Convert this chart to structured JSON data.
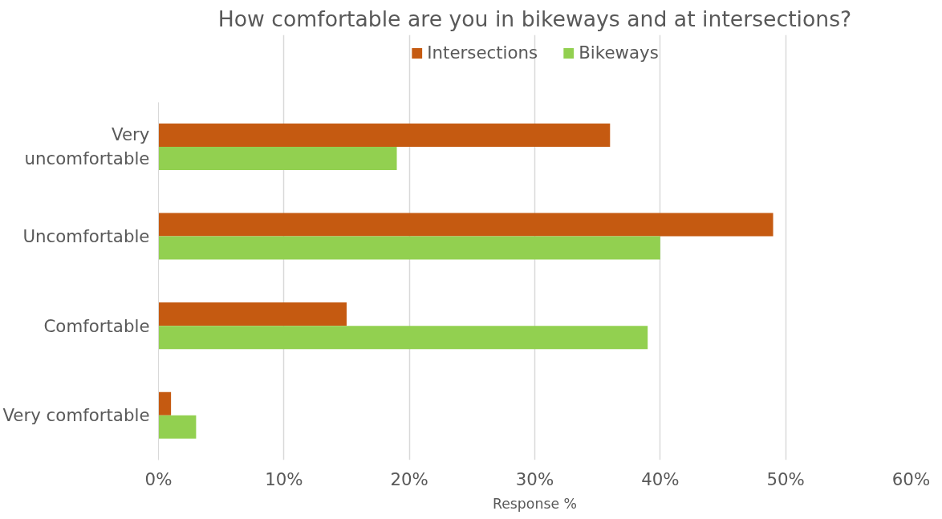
{
  "chart_data": {
    "type": "bar",
    "orientation": "horizontal",
    "title": "How comfortable are you in bikeways and at intersections?",
    "xlabel": "Response %",
    "categories": [
      "Very uncomfortable",
      "Uncomfortable",
      "Comfortable",
      "Very comfortable"
    ],
    "series": [
      {
        "name": "Intersections",
        "color": "#c55a11",
        "values": [
          36,
          49,
          15,
          1
        ]
      },
      {
        "name": "Bikeways",
        "color": "#92d050",
        "values": [
          19,
          40,
          39,
          3
        ]
      }
    ],
    "xlim": [
      0,
      60
    ],
    "xticks": [
      {
        "value": 0,
        "label": "0%"
      },
      {
        "value": 10,
        "label": "10%"
      },
      {
        "value": 20,
        "label": "20%"
      },
      {
        "value": 30,
        "label": "30%"
      },
      {
        "value": 40,
        "label": "40%"
      },
      {
        "value": 50,
        "label": "50%"
      },
      {
        "value": 60,
        "label": "60%"
      }
    ],
    "grid": "x",
    "legend": "top"
  }
}
